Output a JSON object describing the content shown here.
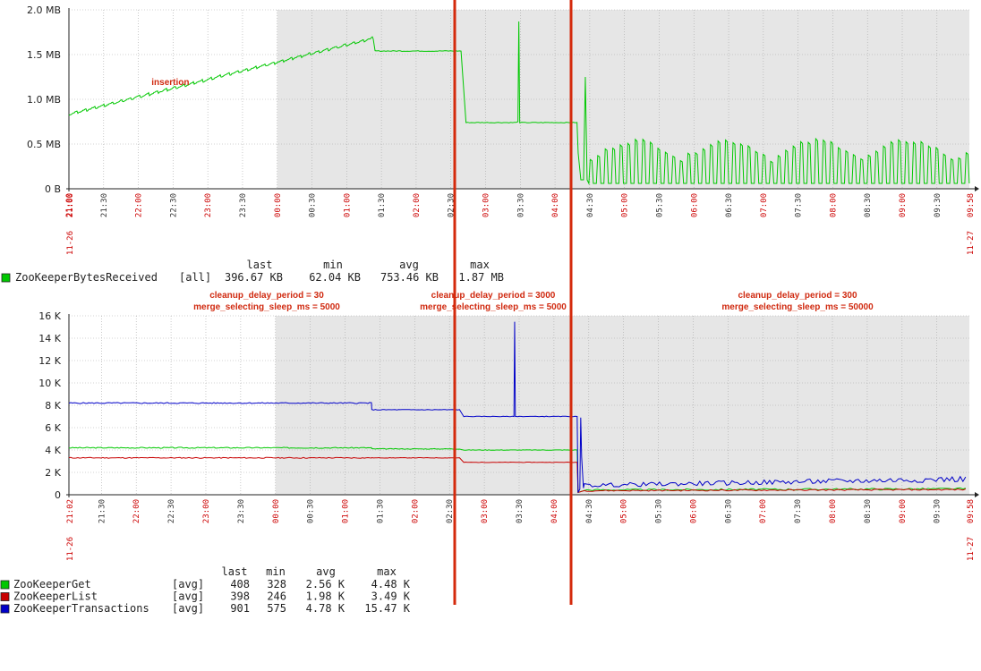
{
  "colors": {
    "night_bg": "#ffffff",
    "plot_bg": "#e6e6e6",
    "grid": "#a8a8a8",
    "red_label": "#cc0000",
    "marker": "#d42a0c",
    "green": "#00c800",
    "red": "#c80000",
    "blue": "#0000c8"
  },
  "chart_data": [
    {
      "type": "line",
      "x_start": "11-26 21:00",
      "x_end": "11-27 09:58",
      "x_major_ticks": [
        "21:00",
        "22:00",
        "23:00",
        "00:00",
        "01:00",
        "02:00",
        "03:00",
        "04:00",
        "05:00",
        "06:00",
        "07:00",
        "08:00",
        "09:00"
      ],
      "x_minor_ticks": [
        "21:30",
        "22:30",
        "23:30",
        "00:30",
        "01:30",
        "02:30",
        "03:30",
        "04:30",
        "05:30",
        "06:30",
        "07:30",
        "08:30",
        "09:30"
      ],
      "x_start_date": "11-26",
      "x_start_label": "21:00",
      "x_end_date": "11-27",
      "x_end_label": "09:58",
      "y_ticks": [
        "0 B",
        "0.5 MB",
        "1.0 MB",
        "1.5 MB",
        "2.0 MB"
      ],
      "ylim": [
        0,
        2.0
      ],
      "grid": true,
      "annotations": [
        {
          "text": "insertion",
          "x": "22:30",
          "y": 1.1
        }
      ],
      "series": [
        {
          "name": "ZooKeeperBytesReceived",
          "color": "green",
          "scope": "[all]",
          "last": "396.67 KB",
          "min": "62.04 KB",
          "avg": "753.46 KB",
          "max": "1.87 MB"
        }
      ],
      "legend_headers": [
        "last",
        "min",
        "avg",
        "max"
      ]
    },
    {
      "type": "line",
      "x_start": "11-26 21:02",
      "x_end": "11-27 09:58",
      "x_major_ticks": [
        "22:00",
        "23:00",
        "00:00",
        "01:00",
        "02:00",
        "03:00",
        "04:00",
        "05:00",
        "06:00",
        "07:00",
        "08:00",
        "09:00"
      ],
      "x_minor_ticks": [
        "21:30",
        "22:30",
        "23:30",
        "00:30",
        "01:30",
        "02:30",
        "03:30",
        "04:30",
        "05:30",
        "06:30",
        "07:30",
        "08:30",
        "09:30"
      ],
      "x_start_date": "11-26",
      "x_start_label": "21:02",
      "x_end_date": "11-27",
      "x_end_label": "09:58",
      "y_ticks": [
        "0",
        "2 K",
        "4 K",
        "6 K",
        "8 K",
        "10 K",
        "12 K",
        "14 K",
        "16 K"
      ],
      "ylim": [
        0,
        16
      ],
      "grid": true,
      "annotations": [
        {
          "line1": "cleanup_delay_period = 30",
          "line2": "merge_selecting_sleep_ms = 5000"
        },
        {
          "line1": "cleanup_delay_period = 3000",
          "line2": "merge_selecting_sleep_ms = 5000"
        },
        {
          "line1": "cleanup_delay_period = 300",
          "line2": "merge_selecting_sleep_ms = 50000"
        }
      ],
      "legend_headers": [
        "last",
        "min",
        "avg",
        "max"
      ],
      "series": [
        {
          "name": "ZooKeeperGet",
          "color": "green",
          "scope": "[avg]",
          "last": "408",
          "min": "328",
          "avg": "2.56 K",
          "max": "4.48 K"
        },
        {
          "name": "ZooKeeperList",
          "color": "red",
          "scope": "[avg]",
          "last": "398",
          "min": "246",
          "avg": "1.98 K",
          "max": "3.49 K"
        },
        {
          "name": "ZooKeeperTransactions",
          "color": "blue",
          "scope": "[avg]",
          "last": "901",
          "min": "575",
          "avg": "4.78 K",
          "max": "15.47 K"
        }
      ]
    }
  ]
}
